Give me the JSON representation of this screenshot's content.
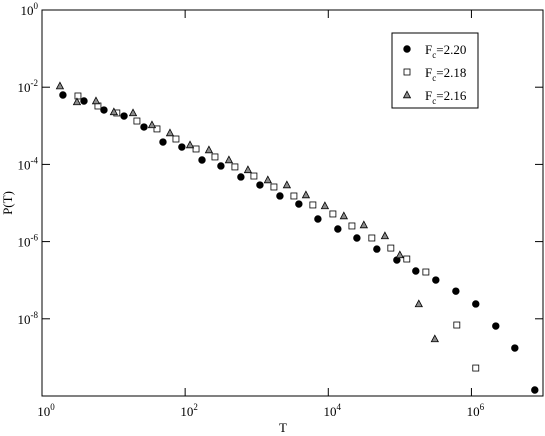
{
  "chart_data": {
    "type": "scatter",
    "x_label": "T",
    "y_label": "P(T)",
    "log_x": true,
    "log_y": true,
    "xlim": [
      1,
      10000000
    ],
    "ylim": [
      1e-10,
      1
    ],
    "xticks": [
      {
        "value": 1,
        "label": "10",
        "exponent": "0"
      },
      {
        "value": 100,
        "label": "10",
        "exponent": "2"
      },
      {
        "value": 10000,
        "label": "10",
        "exponent": "4"
      },
      {
        "value": 1000000,
        "label": "10",
        "exponent": "6"
      }
    ],
    "yticks": [
      {
        "value": 1e-08,
        "label": "10",
        "exponent": "-8"
      },
      {
        "value": 1e-06,
        "label": "10",
        "exponent": "-6"
      },
      {
        "value": 0.0001,
        "label": "10",
        "exponent": "-4"
      },
      {
        "value": 0.01,
        "label": "10",
        "exponent": "-2"
      },
      {
        "value": 1,
        "label": "10",
        "exponent": "0"
      }
    ],
    "legend_position": "upper right",
    "series": [
      {
        "name_parts": [
          "F",
          "c",
          "=2.20"
        ],
        "marker": "circle",
        "color": "#000000",
        "fill": "#000000",
        "x": [
          1.96,
          3.86,
          7.34,
          14.0,
          26.6,
          49,
          90,
          172,
          316,
          601,
          1109,
          2110,
          3880,
          7160,
          13600,
          25100,
          47700,
          90800,
          167000,
          318000,
          606000,
          1150000,
          2190000,
          4040000,
          7680000
        ],
        "values": [
          0.00628,
          0.00439,
          0.00256,
          0.00179,
          0.00093,
          0.00038,
          0.000282,
          0.00013,
          9.1e-05,
          4.72e-05,
          2.92e-05,
          1.52e-05,
          9.4e-06,
          3.85e-06,
          2.12e-06,
          1.24e-06,
          6.4e-07,
          3.33e-07,
          1.73e-07,
          1.01e-07,
          5.2e-08,
          2.42e-08,
          6.5e-09,
          1.75e-09,
          1.43e-10
        ]
      },
      {
        "name_parts": [
          "F",
          "c",
          "=2.18"
        ],
        "marker": "square",
        "color": "#000000",
        "fill": "#ffffff",
        "x": [
          3.18,
          6.05,
          11.1,
          21.2,
          40.4,
          74.4,
          142,
          261,
          496,
          914,
          1740,
          3310,
          6090,
          11600,
          21400,
          40600,
          74800,
          125000,
          231000,
          625000,
          1150000
        ],
        "values": [
          0.00592,
          0.00326,
          0.00215,
          0.00133,
          0.00083,
          0.000455,
          0.000251,
          0.000156,
          8.6e-05,
          5e-05,
          2.6e-05,
          1.52e-05,
          8.9e-06,
          5.2e-06,
          2.54e-06,
          1.24e-06,
          6.8e-07,
          3.54e-07,
          1.63e-07,
          6.9e-09,
          5.3e-10
        ]
      },
      {
        "name_parts": [
          "F",
          "c",
          "=2.16"
        ],
        "marker": "triangle",
        "color": "#000000",
        "fill": "#8c8c8c",
        "x": [
          1.78,
          3.08,
          5.68,
          10.1,
          18.7,
          34.4,
          61.4,
          117,
          215,
          409,
          754,
          1430,
          2640,
          4870,
          8970,
          16500,
          31400,
          61800,
          100000,
          184000,
          308000
        ],
        "values": [
          0.0107,
          0.00414,
          0.00439,
          0.00228,
          0.00215,
          0.00105,
          0.00065,
          0.000318,
          0.000236,
          0.00013,
          7.2e-05,
          3.94e-05,
          2.92e-05,
          1.61e-05,
          8.4e-06,
          4.6e-06,
          2.69e-06,
          1.4e-06,
          4.5e-07,
          2.42e-08,
          3e-09
        ]
      }
    ]
  }
}
